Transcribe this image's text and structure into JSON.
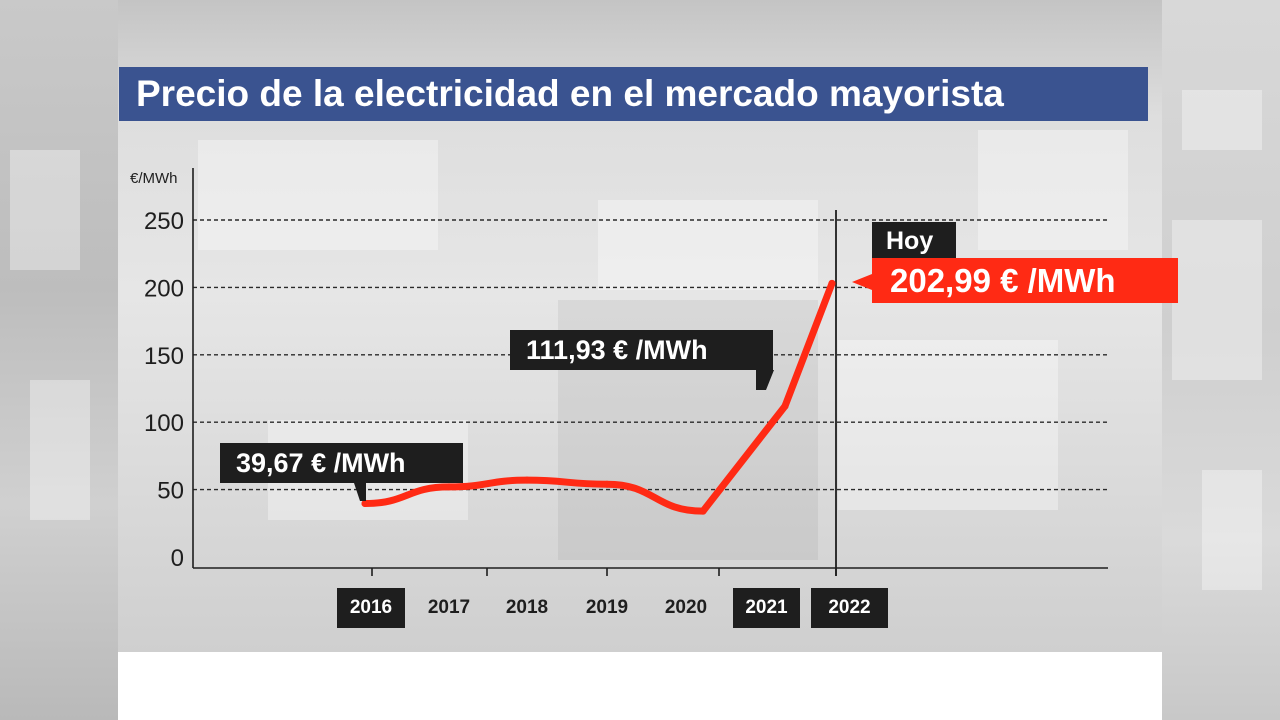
{
  "title": "Precio de la electricidad en el mercado mayorista",
  "colors": {
    "title_bg": "#3a5390",
    "line": "#ff2a14",
    "label_dark": "#1e1e1e",
    "label_highlight": "#ff2a14"
  },
  "chart_data": {
    "type": "line",
    "ylabel": "€/MWh",
    "ylim": [
      0,
      250
    ],
    "yticks": [
      "250",
      "200",
      "150",
      "100",
      "50",
      "0"
    ],
    "categories": [
      "2016",
      "2017",
      "2018",
      "2019",
      "2020",
      "2021",
      "2022"
    ],
    "highlighted_categories": [
      "2016",
      "2021",
      "2022"
    ],
    "grid": "dashed horizontal",
    "series": [
      {
        "x": [
          "2016",
          "2017",
          "2018",
          "2019",
          "2020",
          "2021",
          "2022"
        ],
        "values": [
          39.67,
          52,
          57,
          54,
          34,
          111.93,
          202.99
        ]
      }
    ],
    "marker_line_label": "Hoy",
    "annotations": [
      {
        "text": "39,67 € /MWh",
        "point": "2016"
      },
      {
        "text": "111,93 € /MWh",
        "point": "2021"
      },
      {
        "text": "202,99 € /MWh",
        "point": "2022"
      }
    ]
  }
}
